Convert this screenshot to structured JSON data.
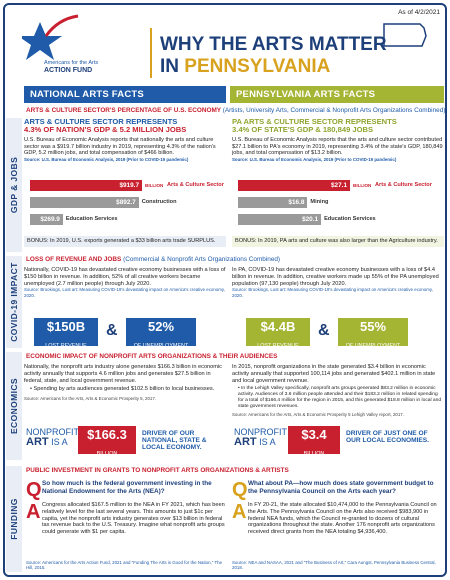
{
  "header": {
    "logo_line1": "Americans for the Arts",
    "logo_line2": "ACTION FUND",
    "date": "As of 4/2/2021",
    "title_line1": "WHY THE ARTS MATTER",
    "title_line2_prefix": "IN",
    "title_state": "PENNSYLVANIA"
  },
  "columns": {
    "national": "NATIONAL ARTS FACTS",
    "state": "PENNSYLVANIA ARTS FACTS"
  },
  "section_labels": [
    "GDP & JOBS",
    "COVID-19 IMPACT",
    "ECONOMICS",
    "FUNDING"
  ],
  "gdp": {
    "banner": "ARTS & CULTURE SECTOR'S PERCENTAGE OF U.S. ECONOMY",
    "banner_note": "(Artists, University Arts, Commercial & Nonprofit Arts Organizations Combined)",
    "national": {
      "heading1": "ARTS & CULTURE SECTOR REPRESENTS",
      "heading2": "4.3% OF NATION'S GDP & 5.2 MILLION JOBS",
      "text": "U.S. Bureau of Economic Analysis reports that nationally the arts and culture sector was a $919.7 billion industry in 2019, representing 4.3% of the nation's GDP, 5.2 million jobs, and total compensation of $466 billion.",
      "source": "Source: U.S. Bureau of Economic Analysis, 2019 (Prior to COVID-19 pandemic)",
      "bars": {
        "categories": [
          "Arts & Culture Sector",
          "Construction",
          "Education Services"
        ],
        "values": [
          919.7,
          892.7,
          269.9
        ],
        "value_labels": [
          "$919.7",
          "$892.7",
          "$269.9"
        ],
        "unit": "BILLION",
        "colors": [
          "#c8202f",
          "#9a9a9a",
          "#9a9a9a"
        ]
      },
      "bonus": "BONUS: In 2019, U.S. exports generated a $33 billion arts trade SURPLUS."
    },
    "state": {
      "heading1": "PA ARTS & CULTURE SECTOR REPRESENTS",
      "heading2": "3.4% OF STATE'S GDP & 180,849 JOBS",
      "text": "U.S. Bureau of Economic Analysis reports that the arts and culture sector contributed $27.1 billion to PA's economy in 2019, representing 3.4% of the state's GDP, 180,849 jobs, and total compensation of $13.2 billion.",
      "source": "Source: U.S. Bureau of Economic Analysis, 2019 (Prior to COVID-19 pandemic)",
      "bars": {
        "categories": [
          "Arts & Culture Sector",
          "Mining",
          "Education Services"
        ],
        "values": [
          27.1,
          16.8,
          20.1
        ],
        "value_labels": [
          "$27.1",
          "$16.8",
          "$20.1"
        ],
        "unit": "BILLION",
        "colors": [
          "#c8202f",
          "#9a9a9a",
          "#9a9a9a"
        ]
      },
      "bonus": "BONUS: In 2019, PA arts and culture was also larger than the Agriculture industry."
    }
  },
  "covid": {
    "banner": "LOSS OF REVENUE AND JOBS",
    "banner_note": "(Commercial & Nonprofit Arts Organizations Combined)",
    "national": {
      "text": "Nationally, COVID-19 has devastated creative economy businesses with a loss of $150 billion in revenue. In addition, 52% of all creative workers became unemployed (2.7 million people) through July 2020.",
      "source": "Source: Brookings, Lost art: Measuring COVID-19's devastating impact on America's creative economy, 2020.",
      "stat1": "$150B",
      "stat1_label": "LOST REVENUE",
      "amp": "&",
      "stat2": "52%",
      "stat2_label": "OF UNEMPLOYMENT"
    },
    "state": {
      "text": "In PA, COVID-19 has devastated creative economy businesses with a loss of $4.4 billion in revenue. In addition, creative workers made up 55% of the PA unemployed population (97,130 people) through July 2020.",
      "source": "Source: Brookings, Lost art: Measuring COVID-19's devastating impact on America's creative economy, 2020.",
      "stat1": "$4.4B",
      "stat1_label": "LOST REVENUE",
      "amp": "&",
      "stat2": "55%",
      "stat2_label": "OF UNEMPLOYMENT"
    }
  },
  "economics": {
    "banner": "ECONOMIC IMPACT OF NONPROFIT ARTS ORGANIZATIONS & THEIR AUDIENCES",
    "national": {
      "text": "Nationally, the nonprofit arts industry alone generates $166.3 billion in economic activity annually that supports 4.6 million jobs and generates $27.5 billion in federal, state, and local government revenue.",
      "bullet": "Spending by arts audiences generated $102.5 billion to local businesses.",
      "source": "Source: Americans for the Arts, Arts & Economic Prosperity 5, 2017.",
      "callout1": "NONPROFIT",
      "callout2": "ART",
      "callout3": "IS A",
      "amount": "$166.3",
      "amount_unit": "BILLION",
      "driver": "DRIVER OF OUR NATIONAL, STATE & LOCAL ECONOMY."
    },
    "state": {
      "text": "In 2015, nonprofit organizations in the state generated $3.4 billion in economic activity annually that supported 100,114 jobs and generated $402.1 million in state and local government revenue.",
      "bullet": "In the Lehigh Valley specifically, nonprofit arts groups generated $83.2 million in economic activity. Audiences of 3.6 million people attended and their $183.2 million in related spending for a total of $166.4 million for the region in 2015, and this generated $18.8 million in local and state government revenues.",
      "source": "Source: Americans for the Arts, Arts & Economic Prosperity 5 Lehigh Valley report, 2017.",
      "callout1": "NONPROFIT",
      "callout2": "ART",
      "callout3": "IS A",
      "amount": "$3.4",
      "amount_unit": "BILLION",
      "driver": "DRIVER OF JUST ONE OF OUR LOCAL ECONOMIES."
    }
  },
  "funding": {
    "banner": "PUBLIC INVESTMENT IN GRANTS TO NONPROFIT ARTS ORGANIZATIONS & ARTISTS",
    "national": {
      "q_mark": "Q",
      "question": "So how much is the federal government investing in the National Endowment for the Arts (NEA)?",
      "a_mark": "A",
      "answer": "Congress allocated $167.5 million to the NEA in FY 2021, which has been relatively level for the last several years. This amounts to just $1c per capita, yet the nonprofit arts industry generates over $13 billion in federal tax revenue back to the U.S. Treasury. Imagine what nonprofit arts groups could generate with $1 per capita.",
      "source": "Source: Americans for the Arts Action Fund, 2021 and \"Funding The Arts is Good for the Nation,\" The Hill, 2015."
    },
    "state": {
      "q_mark": "Q",
      "question": "What about PA—how much does state government budget to the Pennsylvania Council on the Arts each year?",
      "a_mark": "A",
      "answer": "In FY 20-21, the state allocated $10,474,000 to the Pennsylvania Council on the Arts. The Pennsylvania Council on the Arts also received $983,900 in federal NEA funds, which the Council re-granted to dozens of cultural organizations throughout the state. Another 176 nonprofit arts organizations received direct grants from the NEA totaling $4,936,400.",
      "source": "Source: NEA and NASAA, 2021 and \"The Business of Art,\" Cara Aungst, Pennsylvania Business Central, 2018."
    }
  }
}
